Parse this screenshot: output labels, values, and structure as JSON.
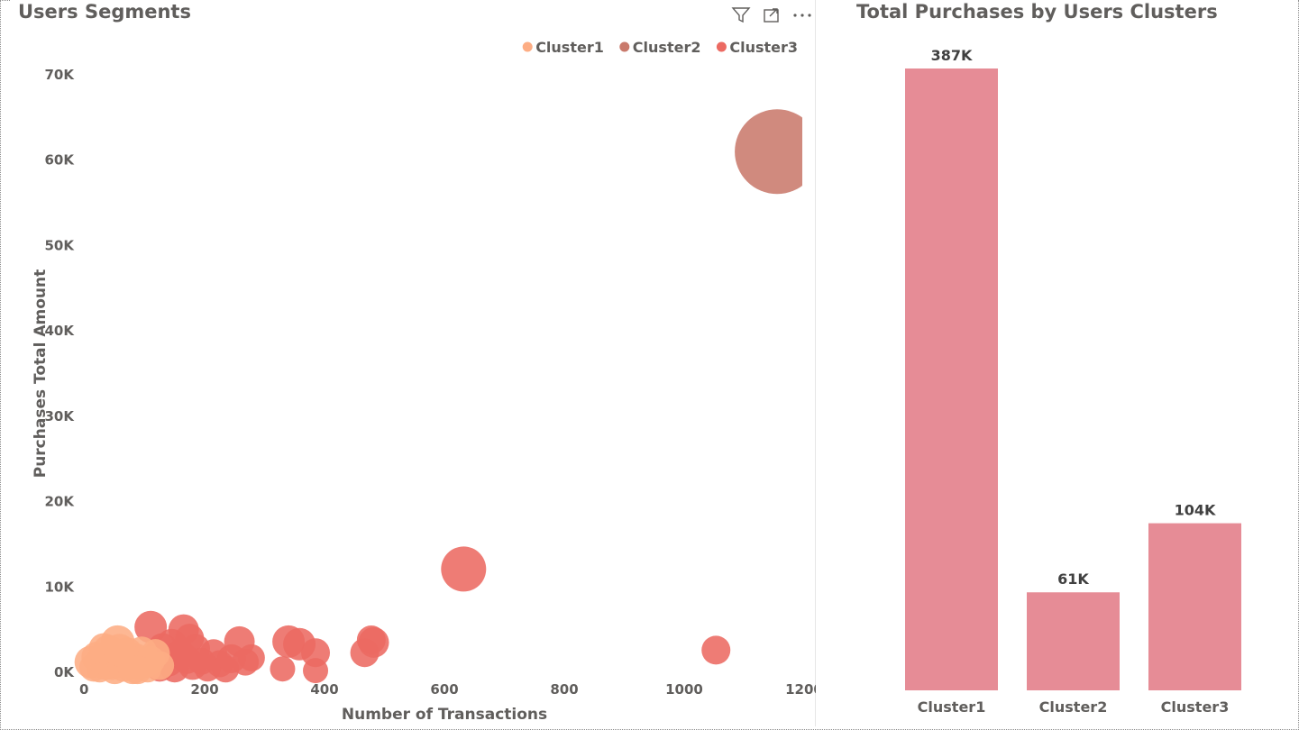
{
  "scatter_visual": {
    "title": "Users Segments",
    "icons": [
      "filter-icon",
      "focus-mode-icon",
      "more-options-icon"
    ]
  },
  "bar_visual": {
    "title": "Total Purchases by Users Clusters"
  },
  "chart_data": [
    {
      "type": "scatter",
      "title": "Users Segments",
      "xlabel": "Number of Transactions",
      "ylabel": "Purchases Total Amount",
      "xlim": [
        0,
        1200
      ],
      "ylim": [
        0,
        70000
      ],
      "x_ticks": [
        "0",
        "200",
        "400",
        "600",
        "800",
        "1000",
        "1200"
      ],
      "y_ticks": [
        "0K",
        "10K",
        "20K",
        "30K",
        "40K",
        "50K",
        "60K",
        "70K"
      ],
      "legend_position": "top-right",
      "series": [
        {
          "name": "Cluster1",
          "color": "#FDAD84",
          "points": [
            {
              "x": 10,
              "y": 1200,
              "size": 18
            },
            {
              "x": 15,
              "y": 600,
              "size": 16
            },
            {
              "x": 20,
              "y": 1800,
              "size": 17
            },
            {
              "x": 25,
              "y": 400,
              "size": 15
            },
            {
              "x": 30,
              "y": 1500,
              "size": 18
            },
            {
              "x": 35,
              "y": 900,
              "size": 17
            },
            {
              "x": 40,
              "y": 2500,
              "size": 18
            },
            {
              "x": 45,
              "y": 1000,
              "size": 18
            },
            {
              "x": 50,
              "y": 300,
              "size": 16
            },
            {
              "x": 55,
              "y": 3500,
              "size": 19
            },
            {
              "x": 60,
              "y": 1800,
              "size": 18
            },
            {
              "x": 65,
              "y": 700,
              "size": 17
            },
            {
              "x": 70,
              "y": 2200,
              "size": 18
            },
            {
              "x": 75,
              "y": 1200,
              "size": 17
            },
            {
              "x": 80,
              "y": 300,
              "size": 16
            },
            {
              "x": 85,
              "y": 1600,
              "size": 17
            },
            {
              "x": 90,
              "y": 800,
              "size": 16
            },
            {
              "x": 95,
              "y": 2400,
              "size": 17
            },
            {
              "x": 100,
              "y": 1000,
              "size": 16
            },
            {
              "x": 105,
              "y": 400,
              "size": 15
            },
            {
              "x": 110,
              "y": 1400,
              "size": 16
            },
            {
              "x": 118,
              "y": 2200,
              "size": 16
            },
            {
              "x": 125,
              "y": 800,
              "size": 16
            },
            {
              "x": 32,
              "y": 2800,
              "size": 17
            },
            {
              "x": 58,
              "y": 2600,
              "size": 18
            },
            {
              "x": 88,
              "y": 300,
              "size": 16
            }
          ]
        },
        {
          "name": "Cluster2",
          "color": "#C97A6C",
          "points": [
            {
              "x": 1155,
              "y": 61000,
              "size": 47
            }
          ]
        },
        {
          "name": "Cluster3",
          "color": "#EC6A62",
          "points": [
            {
              "x": 110,
              "y": 5300,
              "size": 18
            },
            {
              "x": 120,
              "y": 1800,
              "size": 17
            },
            {
              "x": 125,
              "y": 600,
              "size": 16
            },
            {
              "x": 130,
              "y": 2800,
              "size": 17
            },
            {
              "x": 140,
              "y": 1200,
              "size": 16
            },
            {
              "x": 145,
              "y": 3300,
              "size": 17
            },
            {
              "x": 150,
              "y": 500,
              "size": 16
            },
            {
              "x": 160,
              "y": 2200,
              "size": 16
            },
            {
              "x": 165,
              "y": 5000,
              "size": 17
            },
            {
              "x": 170,
              "y": 1500,
              "size": 16
            },
            {
              "x": 175,
              "y": 4000,
              "size": 16
            },
            {
              "x": 180,
              "y": 800,
              "size": 16
            },
            {
              "x": 185,
              "y": 2800,
              "size": 16
            },
            {
              "x": 195,
              "y": 1300,
              "size": 15
            },
            {
              "x": 205,
              "y": 500,
              "size": 15
            },
            {
              "x": 215,
              "y": 2300,
              "size": 15
            },
            {
              "x": 225,
              "y": 1000,
              "size": 15
            },
            {
              "x": 235,
              "y": 400,
              "size": 15
            },
            {
              "x": 245,
              "y": 1600,
              "size": 16
            },
            {
              "x": 258,
              "y": 3600,
              "size": 17
            },
            {
              "x": 268,
              "y": 1200,
              "size": 15
            },
            {
              "x": 278,
              "y": 1700,
              "size": 15
            },
            {
              "x": 330,
              "y": 400,
              "size": 14
            },
            {
              "x": 340,
              "y": 3600,
              "size": 18
            },
            {
              "x": 358,
              "y": 3300,
              "size": 18
            },
            {
              "x": 385,
              "y": 2300,
              "size": 16
            },
            {
              "x": 385,
              "y": 200,
              "size": 14
            },
            {
              "x": 467,
              "y": 2300,
              "size": 16
            },
            {
              "x": 478,
              "y": 3800,
              "size": 16
            },
            {
              "x": 482,
              "y": 3500,
              "size": 17
            },
            {
              "x": 632,
              "y": 12100,
              "size": 25
            },
            {
              "x": 1053,
              "y": 2600,
              "size": 16
            }
          ]
        }
      ]
    },
    {
      "type": "bar",
      "title": "Total Purchases by Users Clusters",
      "categories": [
        "Cluster1",
        "Cluster2",
        "Cluster3"
      ],
      "values": [
        387000,
        61000,
        104000
      ],
      "data_labels": [
        "387K",
        "61K",
        "104K"
      ],
      "color": "#E68C96",
      "ylim": [
        0,
        387000
      ]
    }
  ]
}
